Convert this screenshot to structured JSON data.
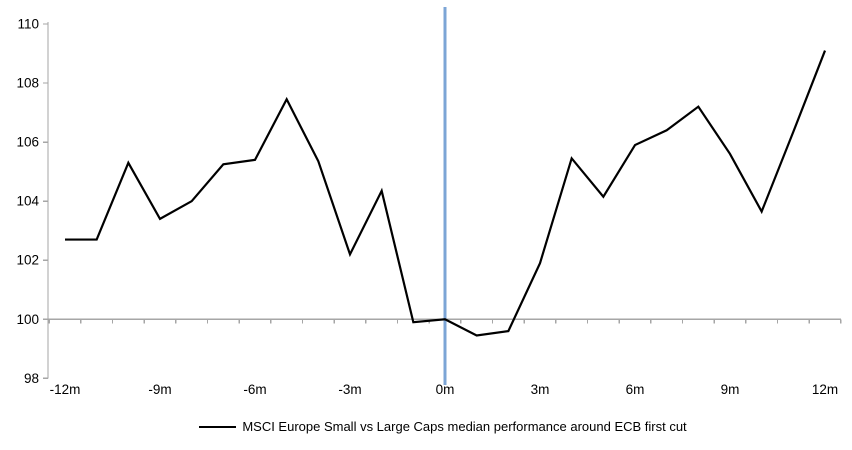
{
  "chart_data": {
    "type": "line",
    "title": "",
    "legend": "MSCI Europe Small vs Large Caps median performance around ECB first cut",
    "x": [
      -12,
      -11,
      -10,
      -9,
      -8,
      -7,
      -6,
      -5,
      -4,
      -3,
      -2,
      -1,
      0,
      1,
      2,
      3,
      4,
      5,
      6,
      7,
      8,
      9,
      10,
      11,
      12
    ],
    "values": [
      102.7,
      102.7,
      105.3,
      103.4,
      104.0,
      105.25,
      105.4,
      107.45,
      105.35,
      102.2,
      104.35,
      99.9,
      100.0,
      99.45,
      99.6,
      101.9,
      105.45,
      104.15,
      105.9,
      106.4,
      107.2,
      105.6,
      103.65,
      106.35,
      109.1
    ],
    "x_tick_months": [
      -12,
      -9,
      -6,
      -3,
      0,
      3,
      6,
      9,
      12
    ],
    "x_tick_labels": [
      "-12m",
      "-9m",
      "-6m",
      "-3m",
      "0m",
      "3m",
      "6m",
      "9m",
      "12m"
    ],
    "y_ticks": [
      110,
      108,
      106,
      104,
      102,
      100,
      98
    ],
    "ylim": [
      98,
      110
    ],
    "baseline_value": 100,
    "event_line_x": 0,
    "grid": "off",
    "legend_position": "bottom-center",
    "colors": {
      "series": "#000000",
      "event_line": "#7CA5D6",
      "axis": "#A6A6A6",
      "text": "#000000"
    }
  }
}
